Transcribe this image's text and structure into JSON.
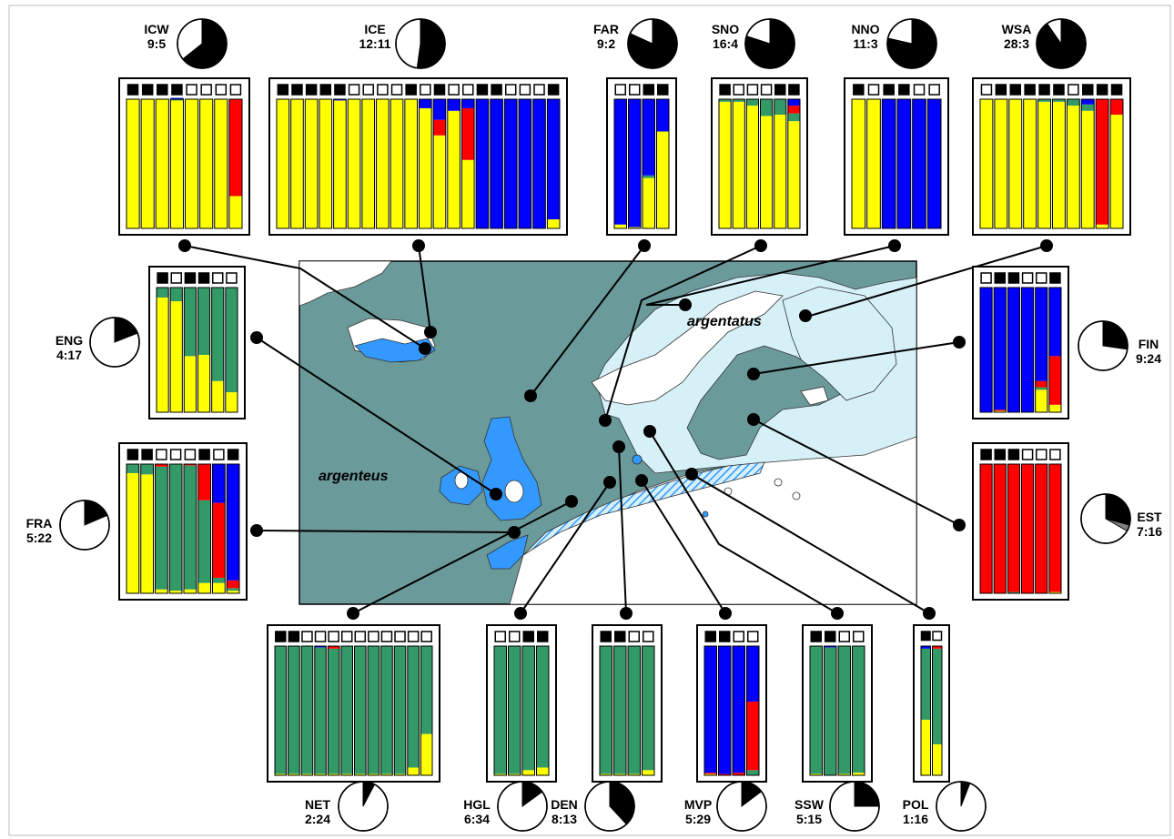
{
  "colors": {
    "yellow": "#ffff00",
    "green": "#339966",
    "red": "#ff0000",
    "blue": "#0000ff",
    "sea": "#6b9a9a",
    "land": "#ffffff",
    "light": "#d6f0f8",
    "argenteus_blue": "#3399ff",
    "frame": "#000000",
    "grey": "#808080"
  },
  "map_labels": {
    "argentatus": "argentatus",
    "argenteus": "argenteus"
  },
  "chart_data": {
    "type": "bar",
    "description_units": "proportion of individual assignment to genetic clusters (0-1)",
    "cluster_order": [
      "yellow",
      "green",
      "red",
      "blue"
    ],
    "populations": [
      {
        "code": "ICW",
        "ratio": "9:5",
        "pie": {
          "black": 9,
          "white": 5
        },
        "squares": [
          "b",
          "b",
          "b",
          "b",
          "w",
          "w",
          "w",
          "w"
        ],
        "bars": [
          [
            1,
            0,
            0,
            0
          ],
          [
            1,
            0,
            0,
            0
          ],
          [
            1,
            0,
            0,
            0
          ],
          [
            0.99,
            0.01,
            0,
            0.01
          ],
          [
            1,
            0,
            0,
            0
          ],
          [
            1,
            0,
            0,
            0
          ],
          [
            1,
            0,
            0,
            0
          ],
          [
            0.25,
            0,
            0.75,
            0
          ]
        ]
      },
      {
        "code": "ICE",
        "ratio": "12:11",
        "pie": {
          "black": 12,
          "white": 11
        },
        "squares": [
          "b",
          "b",
          "b",
          "b",
          "b",
          "w",
          "w",
          "w",
          "w",
          "b",
          "w",
          "b",
          "w",
          "w",
          "b",
          "b",
          "w",
          "w",
          "w",
          "b"
        ],
        "bars": [
          [
            1,
            0,
            0,
            0
          ],
          [
            1,
            0,
            0,
            0
          ],
          [
            1,
            0,
            0,
            0
          ],
          [
            1,
            0,
            0,
            0
          ],
          [
            0.99,
            0,
            0,
            0.01
          ],
          [
            1,
            0,
            0,
            0
          ],
          [
            1,
            0,
            0,
            0
          ],
          [
            1,
            0,
            0,
            0
          ],
          [
            1,
            0,
            0,
            0
          ],
          [
            1,
            0,
            0,
            0
          ],
          [
            0.93,
            0,
            0,
            0.07
          ],
          [
            0.72,
            0,
            0.12,
            0.16
          ],
          [
            0.91,
            0,
            0,
            0.09
          ],
          [
            0.53,
            0,
            0.4,
            0.07
          ],
          [
            0,
            0,
            0,
            1
          ],
          [
            0,
            0,
            0,
            1
          ],
          [
            0,
            0,
            0,
            1
          ],
          [
            0,
            0,
            0,
            1
          ],
          [
            0,
            0,
            0,
            1
          ],
          [
            0.07,
            0,
            0,
            0.93
          ]
        ]
      },
      {
        "code": "FAR",
        "ratio": "9:2",
        "pie": {
          "black": 9,
          "white": 2
        },
        "squares": [
          "w",
          "w",
          "b",
          "b"
        ],
        "bars": [
          [
            0.03,
            0,
            0,
            0.97
          ],
          [
            0.01,
            0,
            0,
            0.99
          ],
          [
            0.39,
            0.02,
            0,
            0.59
          ],
          [
            0.75,
            0,
            0,
            0.25
          ]
        ]
      },
      {
        "code": "SNO",
        "ratio": "16:4",
        "pie": {
          "black": 16,
          "white": 4
        },
        "squares": [
          "b",
          "w",
          "w",
          "w",
          "b",
          "b"
        ],
        "bars": [
          [
            0.98,
            0.02,
            0,
            0
          ],
          [
            0.98,
            0.02,
            0,
            0
          ],
          [
            0.95,
            0.05,
            0,
            0
          ],
          [
            0.87,
            0.13,
            0,
            0
          ],
          [
            0.88,
            0.12,
            0,
            0
          ],
          [
            0.83,
            0.06,
            0.06,
            0.05
          ]
        ]
      },
      {
        "code": "NNO",
        "ratio": "11:3",
        "pie": {
          "black": 11,
          "white": 3
        },
        "squares": [
          "b",
          "w",
          "b",
          "b",
          "w",
          "w"
        ],
        "bars": [
          [
            1,
            0,
            0,
            0
          ],
          [
            1,
            0,
            0,
            0
          ],
          [
            0,
            0,
            0,
            1
          ],
          [
            0,
            0,
            0,
            1
          ],
          [
            0,
            0,
            0,
            1
          ],
          [
            0,
            0,
            0,
            1
          ]
        ]
      },
      {
        "code": "WSA",
        "ratio": "28:3",
        "pie": {
          "black": 28,
          "white": 3
        },
        "squares": [
          "w",
          "b",
          "b",
          "b",
          "b",
          "b",
          "w",
          "b",
          "b",
          "b"
        ],
        "bars": [
          [
            1,
            0,
            0,
            0
          ],
          [
            1,
            0,
            0,
            0
          ],
          [
            1,
            0,
            0,
            0
          ],
          [
            1,
            0,
            0,
            0
          ],
          [
            0.98,
            0.02,
            0,
            0
          ],
          [
            0.98,
            0.02,
            0,
            0
          ],
          [
            0.95,
            0.05,
            0,
            0
          ],
          [
            0.91,
            0.05,
            0,
            0.04
          ],
          [
            0.03,
            0,
            0.97,
            0
          ],
          [
            0.88,
            0,
            0.12,
            0
          ]
        ]
      },
      {
        "code": "ENG",
        "ratio": "4:17",
        "pie": {
          "black": 4,
          "white": 17
        },
        "squares": [
          "b",
          "w",
          "b",
          "b",
          "w",
          "w"
        ],
        "bars": [
          [
            0.92,
            0.08,
            0,
            0
          ],
          [
            0.89,
            0.11,
            0,
            0
          ],
          [
            0.45,
            0.55,
            0,
            0
          ],
          [
            0.46,
            0.54,
            0,
            0
          ],
          [
            0.25,
            0.75,
            0,
            0
          ],
          [
            0.16,
            0.84,
            0,
            0
          ]
        ]
      },
      {
        "code": "FRA",
        "ratio": "5:22",
        "pie": {
          "black": 5,
          "white": 22
        },
        "squares": [
          "b",
          "b",
          "w",
          "w",
          "w",
          "b",
          "w",
          "b"
        ],
        "bars": [
          [
            0.93,
            0.07,
            0,
            0
          ],
          [
            0.92,
            0.08,
            0,
            0
          ],
          [
            0.03,
            0.95,
            0.02,
            0
          ],
          [
            0.02,
            0.98,
            0,
            0
          ],
          [
            0.03,
            0.96,
            0.01,
            0
          ],
          [
            0.08,
            0.64,
            0.28,
            0
          ],
          [
            0.08,
            0.04,
            0.58,
            0.3
          ],
          [
            0.02,
            0.02,
            0.06,
            0.9
          ]
        ]
      },
      {
        "code": "FIN",
        "ratio": "9:24",
        "pie": {
          "black": 9,
          "white": 24
        },
        "squares": [
          "w",
          "b",
          "b",
          "w",
          "w",
          "b"
        ],
        "bars": [
          [
            0,
            0,
            0,
            1
          ],
          [
            0.01,
            0,
            0.01,
            0.98
          ],
          [
            0,
            0,
            0,
            1
          ],
          [
            0,
            0,
            0,
            1
          ],
          [
            0.18,
            0.02,
            0.05,
            0.75
          ],
          [
            0.06,
            0,
            0.39,
            0.55
          ]
        ]
      },
      {
        "code": "EST",
        "ratio": "7:16",
        "pie": {
          "black": 7,
          "white": 16,
          "grey": 1
        },
        "squares": [
          "b",
          "b",
          "b",
          "w",
          "w",
          "w"
        ],
        "bars": [
          [
            0,
            0,
            1,
            0
          ],
          [
            0,
            0,
            1,
            0
          ],
          [
            0,
            0.01,
            0.99,
            0
          ],
          [
            0,
            0,
            1,
            0
          ],
          [
            0,
            0,
            1,
            0
          ],
          [
            0.01,
            0,
            0.99,
            0
          ]
        ]
      },
      {
        "code": "NET",
        "ratio": "2:24",
        "pie": {
          "black": 2,
          "white": 24
        },
        "squares": [
          "b",
          "b",
          "w",
          "w",
          "w",
          "w",
          "w",
          "w",
          "w",
          "w",
          "w",
          "w"
        ],
        "bars": [
          [
            0.01,
            0.99,
            0,
            0
          ],
          [
            0.01,
            0.99,
            0,
            0
          ],
          [
            0.01,
            0.99,
            0,
            0
          ],
          [
            0.01,
            0.98,
            0,
            0.01
          ],
          [
            0.01,
            0.97,
            0.02,
            0
          ],
          [
            0.01,
            0.99,
            0,
            0
          ],
          [
            0.01,
            0.99,
            0,
            0
          ],
          [
            0.01,
            0.99,
            0,
            0
          ],
          [
            0.01,
            0.99,
            0,
            0
          ],
          [
            0.01,
            0.99,
            0,
            0
          ],
          [
            0.06,
            0.94,
            0,
            0
          ],
          [
            0.32,
            0.68,
            0,
            0
          ]
        ]
      },
      {
        "code": "HGL",
        "ratio": "6:34",
        "pie": {
          "black": 6,
          "white": 34
        },
        "squares": [
          "w",
          "w",
          "b",
          "b"
        ],
        "bars": [
          [
            0.01,
            0.99,
            0,
            0
          ],
          [
            0.01,
            0.99,
            0,
            0
          ],
          [
            0.04,
            0.96,
            0,
            0
          ],
          [
            0.06,
            0.94,
            0,
            0
          ]
        ]
      },
      {
        "code": "DEN",
        "ratio": "8:13",
        "pie": {
          "black": 8,
          "white": 13
        },
        "squares": [
          "b",
          "b",
          "w",
          "w"
        ],
        "bars": [
          [
            0.01,
            0.99,
            0,
            0
          ],
          [
            0.01,
            0.99,
            0,
            0
          ],
          [
            0.01,
            0.99,
            0,
            0
          ],
          [
            0.04,
            0.96,
            0,
            0
          ]
        ]
      },
      {
        "code": "MVP",
        "ratio": "5:29",
        "pie": {
          "black": 5,
          "white": 29
        },
        "squares": [
          "b",
          "b",
          "w",
          "w"
        ],
        "bars": [
          [
            0.01,
            0,
            0.01,
            0.98
          ],
          [
            0,
            0,
            0.01,
            0.99
          ],
          [
            0,
            0,
            0.02,
            0.98
          ],
          [
            0,
            0.04,
            0.53,
            0.43
          ]
        ]
      },
      {
        "code": "SSW",
        "ratio": "5:15",
        "pie": {
          "black": 5,
          "white": 15
        },
        "squares": [
          "b",
          "b",
          "w",
          "w"
        ],
        "bars": [
          [
            0.01,
            0.99,
            0,
            0
          ],
          [
            0,
            0.99,
            0,
            0.01
          ],
          [
            0.01,
            0.99,
            0,
            0
          ],
          [
            0.02,
            0.98,
            0,
            0
          ]
        ]
      },
      {
        "code": "POL",
        "ratio": "1:16",
        "pie": {
          "black": 1,
          "white": 16
        },
        "squares": [
          "b",
          "w"
        ],
        "bars": [
          [
            0.43,
            0.55,
            0,
            0.02
          ],
          [
            0.24,
            0.74,
            0.02,
            0
          ]
        ]
      }
    ]
  }
}
